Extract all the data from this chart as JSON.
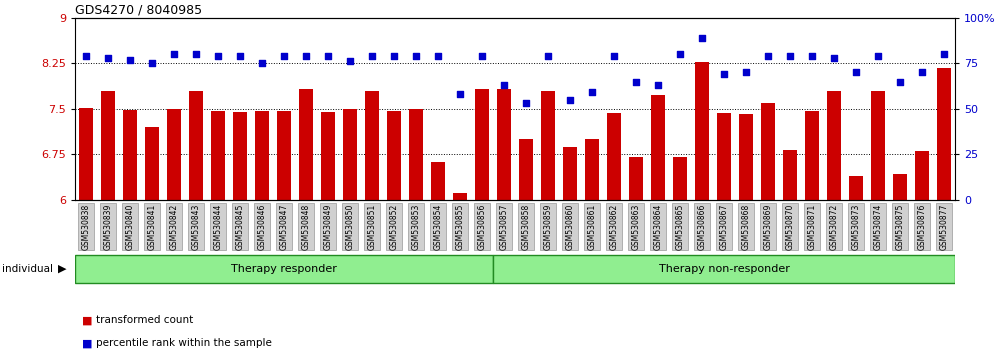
{
  "title": "GDS4270 / 8040985",
  "categories": [
    "GSM530838",
    "GSM530839",
    "GSM530840",
    "GSM530841",
    "GSM530842",
    "GSM530843",
    "GSM530844",
    "GSM530845",
    "GSM530846",
    "GSM530847",
    "GSM530848",
    "GSM530849",
    "GSM530850",
    "GSM530851",
    "GSM530852",
    "GSM530853",
    "GSM530854",
    "GSM530855",
    "GSM530856",
    "GSM530857",
    "GSM530858",
    "GSM530859",
    "GSM530860",
    "GSM530861",
    "GSM530862",
    "GSM530863",
    "GSM530864",
    "GSM530865",
    "GSM530866",
    "GSM530867",
    "GSM530868",
    "GSM530869",
    "GSM530870",
    "GSM530871",
    "GSM530872",
    "GSM530873",
    "GSM530874",
    "GSM530875",
    "GSM530876",
    "GSM530877"
  ],
  "bar_values": [
    7.52,
    7.79,
    7.48,
    7.2,
    7.5,
    7.8,
    7.47,
    7.45,
    7.47,
    7.47,
    7.83,
    7.45,
    7.5,
    7.8,
    7.47,
    7.5,
    6.62,
    6.12,
    7.82,
    7.82,
    7.0,
    7.8,
    6.88,
    7.0,
    7.44,
    6.7,
    7.72,
    6.7,
    8.27,
    7.43,
    7.42,
    7.6,
    6.82,
    7.47,
    7.8,
    6.4,
    7.8,
    6.42,
    6.8,
    8.18
  ],
  "dot_values": [
    79,
    78,
    77,
    75,
    80,
    80,
    79,
    79,
    75,
    79,
    79,
    79,
    76,
    79,
    79,
    79,
    79,
    58,
    79,
    63,
    53,
    79,
    55,
    59,
    79,
    65,
    63,
    80,
    89,
    69,
    70,
    79,
    79,
    79,
    78,
    70,
    79,
    65,
    70,
    80
  ],
  "responder_split": 19,
  "group1_label": "Therapy responder",
  "group2_label": "Therapy non-responder",
  "individual_label": "individual",
  "bar_color": "#cc0000",
  "dot_color": "#0000cc",
  "ylim_left": [
    6.0,
    9.0
  ],
  "ylim_right": [
    0,
    100
  ],
  "yticks_left": [
    6.0,
    6.75,
    7.5,
    8.25,
    9.0
  ],
  "yticks_right": [
    0,
    25,
    50,
    75,
    100
  ],
  "hlines": [
    6.75,
    7.5,
    8.25
  ],
  "legend_bar_label": "transformed count",
  "legend_dot_label": "percentile rank within the sample",
  "group_box_color": "#90ee90",
  "group_box_edge": "#228B22",
  "tick_label_color_left": "#cc0000",
  "tick_label_color_right": "#0000cc",
  "bar_width": 0.65,
  "tick_bg_color": "#d0d0d0",
  "tick_edge_color": "#999999"
}
